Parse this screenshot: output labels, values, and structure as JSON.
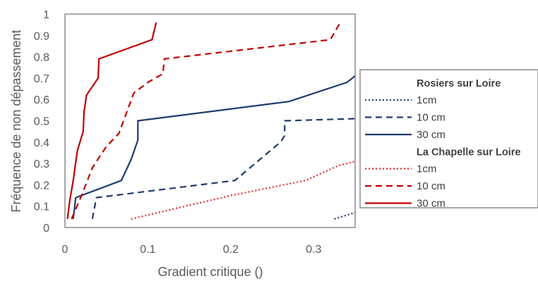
{
  "chart_data": {
    "type": "line",
    "xlabel": "Gradient critique ()",
    "ylabel": "Fréquence de non dépassement",
    "xlim": [
      0,
      0.35
    ],
    "ylim": [
      0,
      1
    ],
    "x_ticks": [
      "0",
      "0.1",
      "0.2",
      "0.3"
    ],
    "x_tick_values": [
      0,
      0.1,
      0.2,
      0.3
    ],
    "y_ticks": [
      "0",
      "0.1",
      "0.2",
      "0.3",
      "0.4",
      "0.5",
      "0.6",
      "0.7",
      "0.8",
      "0.9",
      "1"
    ],
    "y_tick_values": [
      0,
      0.1,
      0.2,
      0.3,
      0.4,
      0.5,
      0.6,
      0.7,
      0.8,
      0.9,
      1
    ],
    "grid": false,
    "legend_position": "right",
    "legend_groups": [
      {
        "title": "Rosiers sur Loire",
        "series_index": [
          0,
          1,
          2
        ]
      },
      {
        "title": "La Chapelle sur Loire",
        "series_index": [
          3,
          4,
          5
        ]
      }
    ],
    "series": [
      {
        "name": "1cm",
        "color": "#1f3a6e",
        "dash": "dotted",
        "points": [
          [
            0.325,
            0.04
          ],
          [
            0.35,
            0.07
          ]
        ]
      },
      {
        "name": "10 cm",
        "color": "#1f3a6e",
        "dash": "dashed",
        "points": [
          [
            0.033,
            0.04
          ],
          [
            0.038,
            0.14
          ],
          [
            0.205,
            0.22
          ],
          [
            0.26,
            0.4
          ],
          [
            0.265,
            0.43
          ],
          [
            0.265,
            0.5
          ],
          [
            0.35,
            0.51
          ]
        ]
      },
      {
        "name": "30 cm",
        "color": "#1f3a6e",
        "dash": "solid",
        "points": [
          [
            0.01,
            0.04
          ],
          [
            0.013,
            0.14
          ],
          [
            0.068,
            0.22
          ],
          [
            0.08,
            0.32
          ],
          [
            0.088,
            0.41
          ],
          [
            0.088,
            0.5
          ],
          [
            0.27,
            0.59
          ],
          [
            0.34,
            0.68
          ],
          [
            0.35,
            0.71
          ]
        ]
      },
      {
        "name": "1cm",
        "color": "#e03030",
        "dash": "dotted",
        "points": [
          [
            0.08,
            0.04
          ],
          [
            0.2,
            0.15
          ],
          [
            0.29,
            0.22
          ],
          [
            0.33,
            0.29
          ],
          [
            0.35,
            0.31
          ]
        ]
      },
      {
        "name": "10 cm",
        "color": "#c00000",
        "dash": "dashed",
        "points": [
          [
            0.008,
            0.04
          ],
          [
            0.02,
            0.15
          ],
          [
            0.033,
            0.28
          ],
          [
            0.05,
            0.38
          ],
          [
            0.065,
            0.44
          ],
          [
            0.083,
            0.63
          ],
          [
            0.1,
            0.68
          ],
          [
            0.118,
            0.72
          ],
          [
            0.12,
            0.79
          ],
          [
            0.32,
            0.88
          ],
          [
            0.332,
            0.96
          ]
        ]
      },
      {
        "name": "30 cm",
        "color": "#c00000",
        "dash": "solid",
        "points": [
          [
            0.003,
            0.04
          ],
          [
            0.006,
            0.13
          ],
          [
            0.01,
            0.22
          ],
          [
            0.015,
            0.36
          ],
          [
            0.022,
            0.45
          ],
          [
            0.023,
            0.54
          ],
          [
            0.026,
            0.62
          ],
          [
            0.04,
            0.7
          ],
          [
            0.041,
            0.79
          ],
          [
            0.105,
            0.88
          ],
          [
            0.11,
            0.96
          ]
        ]
      }
    ]
  }
}
